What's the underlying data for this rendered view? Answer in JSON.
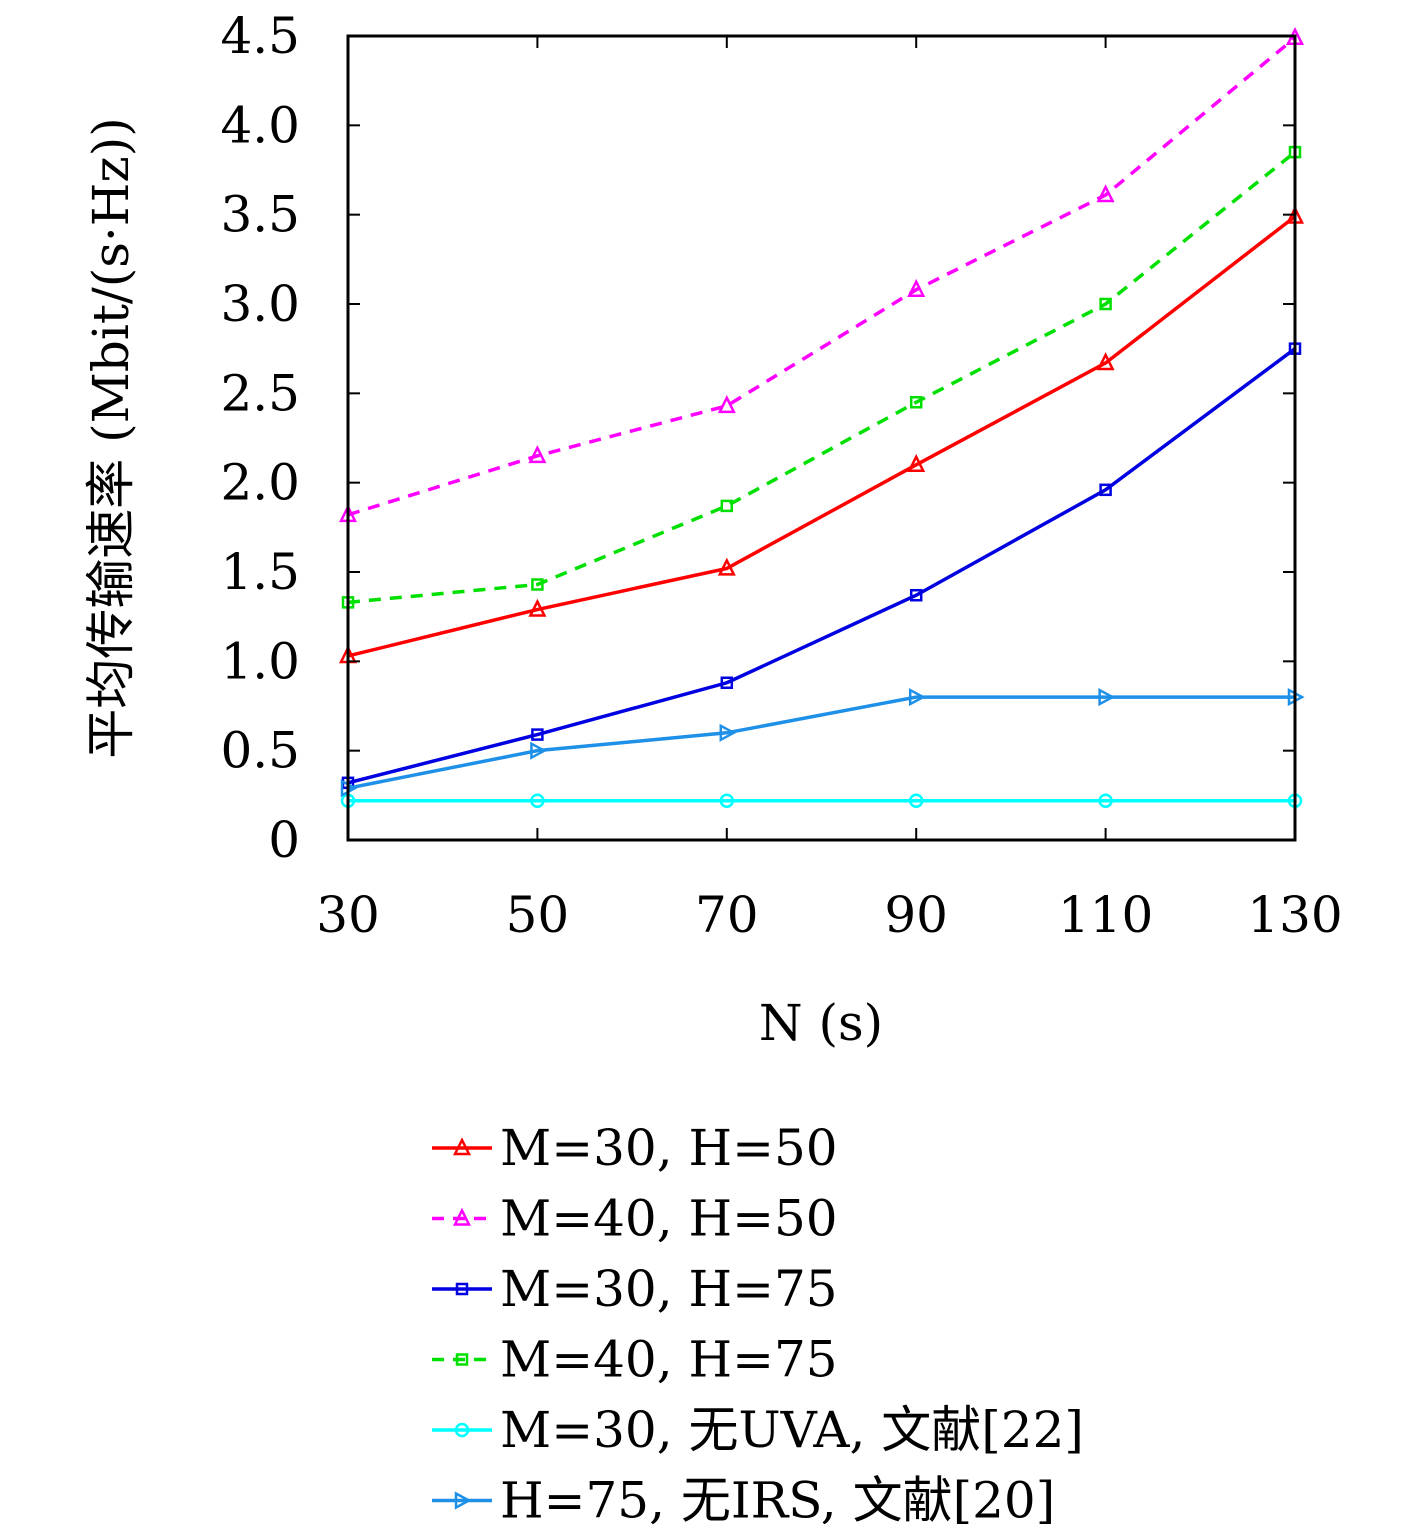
{
  "chart_data": {
    "type": "line",
    "xlabel": "N (s)",
    "ylabel": "平均传输速率 (Mbit/(s·Hz))",
    "xlim": [
      30,
      130
    ],
    "ylim": [
      0,
      4.5
    ],
    "x": [
      30,
      50,
      70,
      90,
      110,
      130
    ],
    "x_ticks": [
      "30",
      "50",
      "70",
      "90",
      "110",
      "130"
    ],
    "y_ticks": [
      {
        "value": 0,
        "label": "0"
      },
      {
        "value": 0.5,
        "label": "0.5"
      },
      {
        "value": 1.0,
        "label": "1.0"
      },
      {
        "value": 1.5,
        "label": "1.5"
      },
      {
        "value": 2.0,
        "label": "2.0"
      },
      {
        "value": 2.5,
        "label": "2.5"
      },
      {
        "value": 3.0,
        "label": "3.0"
      },
      {
        "value": 3.5,
        "label": "3.5"
      },
      {
        "value": 4.0,
        "label": "4.0"
      },
      {
        "value": 4.5,
        "label": "4.5"
      }
    ],
    "grid": false,
    "legend_position": "below",
    "series": [
      {
        "name": "M=30, H=50",
        "values": [
          1.03,
          1.29,
          1.52,
          2.1,
          2.67,
          3.49
        ],
        "color": "#ff0000",
        "dash": "solid",
        "marker": "triangle"
      },
      {
        "name": "M=40, H=50",
        "values": [
          1.82,
          2.15,
          2.43,
          3.08,
          3.61,
          4.49
        ],
        "color": "#ff00ff",
        "dash": "dashed",
        "marker": "triangle"
      },
      {
        "name": "M=30, H=75",
        "values": [
          0.32,
          0.59,
          0.88,
          1.37,
          1.96,
          2.75
        ],
        "color": "#0000e0",
        "dash": "solid",
        "marker": "square"
      },
      {
        "name": "M=40, H=75",
        "values": [
          1.33,
          1.43,
          1.87,
          2.45,
          3.0,
          3.85
        ],
        "color": "#00e000",
        "dash": "dashed",
        "marker": "square"
      },
      {
        "name": "M=30, 无UVA, 文献[22]",
        "values": [
          0.22,
          0.22,
          0.22,
          0.22,
          0.22,
          0.22
        ],
        "color": "#00ffff",
        "dash": "solid",
        "marker": "circle"
      },
      {
        "name": "H=75, 无IRS, 文献[20]",
        "values": [
          0.29,
          0.5,
          0.6,
          0.8,
          0.8,
          0.8
        ],
        "color": "#1e90e8",
        "dash": "solid",
        "marker": "triangle-right"
      }
    ]
  }
}
